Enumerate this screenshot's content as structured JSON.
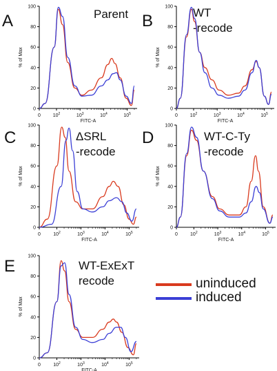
{
  "figure": {
    "legend": [
      {
        "label": "uninduced",
        "color": "#d93a1e"
      },
      {
        "label": "induced",
        "color": "#3b3fd6"
      }
    ]
  },
  "chart_data": [
    {
      "type": "line",
      "panel_letter": "A",
      "title": "Parent",
      "xlabel": "FITC-A",
      "ylabel": "% of Max",
      "ylim": [
        0,
        100
      ],
      "x_scale": "biexponential",
      "x_tick_labels": [
        "0",
        "10^2",
        "10^3",
        "10^4",
        "10^5"
      ],
      "y_tick_labels": [
        "0",
        "20",
        "40",
        "60",
        "80",
        "100"
      ],
      "series": [
        {
          "name": "uninduced",
          "color": "#d93a1e",
          "points": [
            [
              0,
              0
            ],
            [
              30,
              5
            ],
            [
              80,
              60
            ],
            [
              120,
              97
            ],
            [
              180,
              82
            ],
            [
              300,
              45
            ],
            [
              600,
              20
            ],
            [
              1200,
              13
            ],
            [
              3000,
              18
            ],
            [
              8000,
              30
            ],
            [
              15000,
              43
            ],
            [
              22000,
              49
            ],
            [
              30000,
              44
            ],
            [
              50000,
              30
            ],
            [
              90000,
              10
            ],
            [
              150000,
              3
            ],
            [
              200000,
              18
            ]
          ]
        },
        {
          "name": "induced",
          "color": "#3b3fd6",
          "points": [
            [
              0,
              0
            ],
            [
              30,
              5
            ],
            [
              80,
              60
            ],
            [
              120,
              99
            ],
            [
              180,
              90
            ],
            [
              300,
              50
            ],
            [
              600,
              22
            ],
            [
              1200,
              12
            ],
            [
              3000,
              13
            ],
            [
              8000,
              22
            ],
            [
              15000,
              28
            ],
            [
              25000,
              34
            ],
            [
              35000,
              35
            ],
            [
              50000,
              28
            ],
            [
              90000,
              12
            ],
            [
              150000,
              5
            ],
            [
              200000,
              22
            ]
          ]
        }
      ]
    },
    {
      "type": "line",
      "panel_letter": "B",
      "title": "WT\n-recode",
      "xlabel": "FITC-A",
      "ylabel": "% of Max",
      "ylim": [
        0,
        100
      ],
      "x_scale": "biexponential",
      "x_tick_labels": [
        "0",
        "10^2",
        "10^3",
        "10^4",
        "10^5"
      ],
      "y_tick_labels": [
        "0",
        "20",
        "40",
        "60",
        "80",
        "100"
      ],
      "series": [
        {
          "name": "uninduced",
          "color": "#d93a1e",
          "points": [
            [
              0,
              0
            ],
            [
              20,
              10
            ],
            [
              50,
              70
            ],
            [
              80,
              97
            ],
            [
              110,
              85
            ],
            [
              180,
              55
            ],
            [
              300,
              40
            ],
            [
              600,
              28
            ],
            [
              1200,
              18
            ],
            [
              3000,
              13
            ],
            [
              8000,
              15
            ],
            [
              15000,
              22
            ],
            [
              30000,
              38
            ],
            [
              45000,
              46
            ],
            [
              60000,
              40
            ],
            [
              100000,
              12
            ],
            [
              150000,
              4
            ],
            [
              200000,
              16
            ]
          ]
        },
        {
          "name": "induced",
          "color": "#3b3fd6",
          "points": [
            [
              0,
              0
            ],
            [
              20,
              10
            ],
            [
              50,
              72
            ],
            [
              80,
              99
            ],
            [
              110,
              88
            ],
            [
              180,
              55
            ],
            [
              300,
              35
            ],
            [
              600,
              20
            ],
            [
              1200,
              13
            ],
            [
              3000,
              10
            ],
            [
              8000,
              12
            ],
            [
              15000,
              18
            ],
            [
              30000,
              35
            ],
            [
              45000,
              47
            ],
            [
              60000,
              40
            ],
            [
              100000,
              12
            ],
            [
              150000,
              4
            ],
            [
              200000,
              14
            ]
          ]
        }
      ]
    },
    {
      "type": "line",
      "panel_letter": "C",
      "title": "ΔSRL\n-recode",
      "xlabel": "FITC-A",
      "ylabel": "% of Max",
      "ylim": [
        0,
        100
      ],
      "x_scale": "biexponential",
      "x_tick_labels": [
        "0",
        "10^2",
        "10^3",
        "10^4",
        "10^5"
      ],
      "y_tick_labels": [
        "0",
        "20",
        "40",
        "60",
        "80",
        "100"
      ],
      "series": [
        {
          "name": "uninduced",
          "color": "#d93a1e",
          "points": [
            [
              0,
              0
            ],
            [
              40,
              8
            ],
            [
              100,
              60
            ],
            [
              160,
              98
            ],
            [
              220,
              88
            ],
            [
              320,
              55
            ],
            [
              600,
              25
            ],
            [
              1200,
              18
            ],
            [
              3000,
              18
            ],
            [
              8000,
              30
            ],
            [
              15000,
              40
            ],
            [
              22000,
              45
            ],
            [
              35000,
              40
            ],
            [
              60000,
              22
            ],
            [
              100000,
              8
            ],
            [
              150000,
              3
            ],
            [
              200000,
              10
            ]
          ]
        },
        {
          "name": "induced",
          "color": "#3b3fd6",
          "points": [
            [
              0,
              0
            ],
            [
              60,
              3
            ],
            [
              150,
              40
            ],
            [
              240,
              85
            ],
            [
              320,
              97
            ],
            [
              450,
              75
            ],
            [
              700,
              35
            ],
            [
              1200,
              18
            ],
            [
              3000,
              15
            ],
            [
              8000,
              20
            ],
            [
              15000,
              26
            ],
            [
              30000,
              29
            ],
            [
              50000,
              25
            ],
            [
              80000,
              14
            ],
            [
              130000,
              6
            ],
            [
              200000,
              18
            ]
          ]
        }
      ]
    },
    {
      "type": "line",
      "panel_letter": "D",
      "title": "WT-C-Ty\n-recode",
      "xlabel": "FITC-A",
      "ylabel": "% of Max",
      "ylim": [
        0,
        100
      ],
      "x_scale": "biexponential",
      "x_tick_labels": [
        "0",
        "10^2",
        "10^3",
        "10^4",
        "10^5"
      ],
      "y_tick_labels": [
        "0",
        "20",
        "40",
        "60",
        "80",
        "100"
      ],
      "series": [
        {
          "name": "uninduced",
          "color": "#d93a1e",
          "points": [
            [
              0,
              0
            ],
            [
              20,
              10
            ],
            [
              50,
              70
            ],
            [
              80,
              95
            ],
            [
              130,
              85
            ],
            [
              250,
              55
            ],
            [
              600,
              30
            ],
            [
              1200,
              18
            ],
            [
              3000,
              12
            ],
            [
              8000,
              12
            ],
            [
              15000,
              20
            ],
            [
              25000,
              45
            ],
            [
              38000,
              70
            ],
            [
              50000,
              55
            ],
            [
              80000,
              20
            ],
            [
              150000,
              4
            ],
            [
              200000,
              12
            ]
          ]
        },
        {
          "name": "induced",
          "color": "#3b3fd6",
          "points": [
            [
              0,
              0
            ],
            [
              20,
              10
            ],
            [
              50,
              72
            ],
            [
              80,
              98
            ],
            [
              130,
              88
            ],
            [
              250,
              55
            ],
            [
              600,
              28
            ],
            [
              1200,
              16
            ],
            [
              3000,
              10
            ],
            [
              8000,
              10
            ],
            [
              15000,
              14
            ],
            [
              25000,
              25
            ],
            [
              40000,
              40
            ],
            [
              55000,
              34
            ],
            [
              80000,
              18
            ],
            [
              150000,
              4
            ],
            [
              200000,
              10
            ]
          ]
        }
      ]
    },
    {
      "type": "line",
      "panel_letter": "E",
      "title": "WT-ExExT\nrecode",
      "xlabel": "FITC-A",
      "ylabel": "% of Max",
      "ylim": [
        0,
        100
      ],
      "x_scale": "biexponential",
      "x_tick_labels": [
        "0",
        "10^2",
        "10^3",
        "10^4",
        "10^5"
      ],
      "y_tick_labels": [
        "0",
        "20",
        "40",
        "60",
        "80",
        "100"
      ],
      "series": [
        {
          "name": "uninduced",
          "color": "#d93a1e",
          "points": [
            [
              0,
              0
            ],
            [
              40,
              5
            ],
            [
              100,
              55
            ],
            [
              150,
              95
            ],
            [
              210,
              85
            ],
            [
              320,
              55
            ],
            [
              600,
              28
            ],
            [
              1200,
              20
            ],
            [
              3000,
              20
            ],
            [
              8000,
              28
            ],
            [
              15000,
              35
            ],
            [
              22000,
              38
            ],
            [
              30000,
              35
            ],
            [
              50000,
              25
            ],
            [
              90000,
              10
            ],
            [
              150000,
              3
            ],
            [
              200000,
              14
            ]
          ]
        },
        {
          "name": "induced",
          "color": "#3b3fd6",
          "points": [
            [
              0,
              0
            ],
            [
              40,
              5
            ],
            [
              100,
              55
            ],
            [
              150,
              90
            ],
            [
              210,
              93
            ],
            [
              320,
              62
            ],
            [
              600,
              30
            ],
            [
              1200,
              18
            ],
            [
              3000,
              15
            ],
            [
              8000,
              18
            ],
            [
              15000,
              24
            ],
            [
              30000,
              30
            ],
            [
              45000,
              30
            ],
            [
              70000,
              20
            ],
            [
              120000,
              6
            ],
            [
              200000,
              16
            ]
          ]
        }
      ]
    }
  ]
}
